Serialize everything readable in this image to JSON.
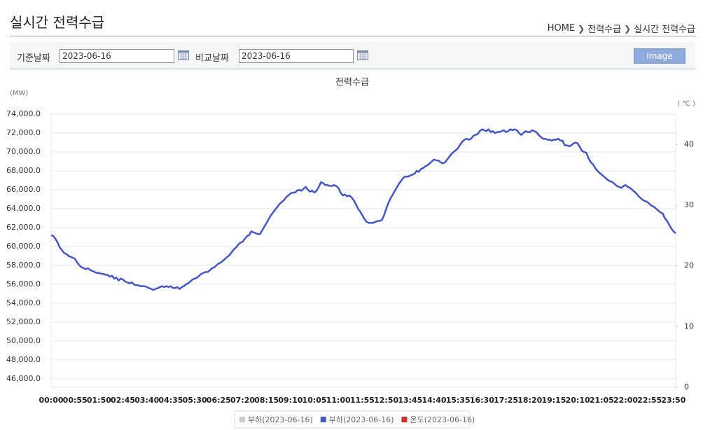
{
  "header": {
    "title": "실시간 전력수급",
    "breadcrumb": [
      "HOME",
      "전력수급",
      "실시간 전력수급"
    ]
  },
  "form": {
    "base_label": "기준날짜",
    "base_date": "2023-06-16",
    "compare_label": "비교날짜",
    "compare_date": "2023-06-16",
    "button": "Image"
  },
  "chart_data": {
    "type": "line",
    "title": "전력수급",
    "y_label": "(MW)",
    "y2_label": "( ℃ )",
    "categories": [
      "00:00",
      null,
      null,
      null,
      null,
      null,
      null,
      null,
      null,
      null,
      null,
      "00:55",
      null,
      null,
      null,
      null,
      null,
      null,
      null,
      null,
      null,
      null,
      "01:50",
      null,
      null,
      null,
      null,
      null,
      null,
      null,
      null,
      null,
      null,
      "02:45",
      null,
      null,
      null,
      null,
      null,
      null,
      null,
      null,
      null,
      null,
      "03:40",
      null,
      null,
      null,
      null,
      null,
      null,
      null,
      null,
      null,
      null,
      "04:35",
      null,
      null,
      null,
      null,
      null,
      null,
      null,
      null,
      null,
      null,
      "05:30",
      null,
      null,
      null,
      null,
      null,
      null,
      null,
      null,
      null,
      null,
      "06:25",
      null,
      null,
      null,
      null,
      null,
      null,
      null,
      null,
      null,
      null,
      "07:20",
      null,
      null,
      null,
      null,
      null,
      null,
      null,
      null,
      null,
      null,
      "08:15",
      null,
      null,
      null,
      null,
      null,
      null,
      null,
      null,
      null,
      null,
      "09:10",
      null,
      null,
      null,
      null,
      null,
      null,
      null,
      null,
      null,
      null,
      "10:05",
      null,
      null,
      null,
      null,
      null,
      null,
      null,
      null,
      null,
      null,
      "11:00",
      null,
      null,
      null,
      null,
      null,
      null,
      null,
      null,
      null,
      null,
      "11:55",
      null,
      null,
      null,
      null,
      null,
      null,
      null,
      null,
      null,
      null,
      "12:50",
      null,
      null,
      null,
      null,
      null,
      null,
      null,
      null,
      null,
      null,
      "13:45",
      null,
      null,
      null,
      null,
      null,
      null,
      null,
      null,
      null,
      null,
      "14:40",
      null,
      null,
      null,
      null,
      null,
      null,
      null,
      null,
      null,
      null,
      "15:35",
      null,
      null,
      null,
      null,
      null,
      null,
      null,
      null,
      null,
      null,
      "16:30",
      null,
      null,
      null,
      null,
      null,
      null,
      null,
      null,
      null,
      null,
      "17:25",
      null,
      null,
      null,
      null,
      null,
      null,
      null,
      null,
      null,
      null,
      "18:20",
      null,
      null,
      null,
      null,
      null,
      null,
      null,
      null,
      null,
      null,
      "19:15",
      null,
      null,
      null,
      null,
      null,
      null,
      null,
      null,
      null,
      null,
      "20:10",
      null,
      null,
      null,
      null,
      null,
      null,
      null,
      null,
      null,
      null,
      "21:05",
      null,
      null,
      null,
      null,
      null,
      null,
      null,
      null,
      null,
      null,
      "22:00",
      null,
      null,
      null,
      null,
      null,
      null,
      null,
      null,
      null,
      null,
      "22:55",
      null,
      null,
      null,
      null,
      null,
      null,
      null,
      null,
      null,
      null,
      "23:50",
      null
    ],
    "series": [
      {
        "name": "부하(2023-06-16)",
        "color": "#cccccc"
      },
      {
        "name": "부하(2023-06-16)",
        "color": "#4455cc",
        "values": [
          61200,
          61100,
          60800,
          60400,
          59900,
          59600,
          59300,
          59200,
          59000,
          58900,
          58800,
          58700,
          58300,
          58000,
          57800,
          57700,
          57600,
          57700,
          57500,
          57400,
          57300,
          57200,
          57200,
          57100,
          57100,
          57000,
          57000,
          56800,
          56900,
          56600,
          56700,
          56400,
          56600,
          56500,
          56300,
          56200,
          56100,
          56200,
          56000,
          55900,
          55900,
          55800,
          55800,
          55800,
          55700,
          55600,
          55500,
          55400,
          55500,
          55600,
          55700,
          55800,
          55700,
          55800,
          55700,
          55800,
          55600,
          55600,
          55700,
          55500,
          55700,
          55800,
          56000,
          56100,
          56300,
          56500,
          56600,
          56700,
          56900,
          57100,
          57200,
          57300,
          57300,
          57500,
          57700,
          57800,
          58000,
          58200,
          58300,
          58500,
          58700,
          58900,
          59100,
          59400,
          59700,
          59900,
          60200,
          60400,
          60500,
          60800,
          61100,
          61200,
          61600,
          61500,
          61400,
          61300,
          61300,
          61700,
          62100,
          62500,
          62900,
          63300,
          63600,
          63900,
          64200,
          64500,
          64700,
          64900,
          65200,
          65400,
          65600,
          65700,
          65700,
          65900,
          66000,
          65900,
          66100,
          66300,
          66000,
          65800,
          65900,
          65700,
          65900,
          66300,
          66800,
          66700,
          66500,
          66500,
          66400,
          66400,
          66500,
          66400,
          66200,
          65700,
          65400,
          65500,
          65300,
          65400,
          65200,
          64900,
          64500,
          64000,
          63700,
          63300,
          62900,
          62600,
          62500,
          62500,
          62500,
          62600,
          62700,
          62700,
          62800,
          63300,
          64000,
          64600,
          65100,
          65500,
          65900,
          66300,
          66700,
          67000,
          67300,
          67400,
          67400,
          67500,
          67600,
          67700,
          68000,
          67900,
          68200,
          68300,
          68500,
          68600,
          68800,
          69000,
          69200,
          69100,
          69100,
          68900,
          68800,
          68900,
          69200,
          69500,
          69800,
          70000,
          70200,
          70400,
          70800,
          71100,
          71300,
          71400,
          71300,
          71400,
          71700,
          71800,
          71900,
          72200,
          72400,
          72300,
          72200,
          72400,
          72100,
          72200,
          72000,
          72100,
          72100,
          72200,
          72300,
          72100,
          72200,
          72400,
          72300,
          72400,
          72300,
          72000,
          71800,
          72000,
          72200,
          72100,
          72100,
          72300,
          72200,
          72100,
          71800,
          71600,
          71400,
          71400,
          71300,
          71300,
          71200,
          71300,
          71300,
          71400,
          71200,
          71200,
          70700,
          70700,
          70600,
          70700,
          70900,
          71000,
          70900,
          70500,
          70100,
          70000,
          69900,
          69300,
          68900,
          68700,
          68300,
          68000,
          67800,
          67600,
          67400,
          67200,
          67000,
          66900,
          66800,
          66600,
          66400,
          66300,
          66200,
          66400,
          66500,
          66300,
          66200,
          66000,
          65800,
          65600,
          65300,
          65100,
          64900,
          64800,
          64700,
          64500,
          64300,
          64200,
          64000,
          63800,
          63600,
          63500,
          63000,
          62700,
          62300,
          61900,
          61600,
          61400
        ]
      },
      {
        "name": "온도(2023-06-16)",
        "color": "#d03030",
        "axis": "y2"
      }
    ],
    "ylim": [
      45100,
      74000
    ],
    "yticks": [
      {
        "value": 46000,
        "label": "46,000.0"
      },
      {
        "value": 48000,
        "label": "48,000.0"
      },
      {
        "value": 50000,
        "label": "50,000.0"
      },
      {
        "value": 52000,
        "label": "52,000.0"
      },
      {
        "value": 54000,
        "label": "54,000.0"
      },
      {
        "value": 56000,
        "label": "56,000.0"
      },
      {
        "value": 58000,
        "label": "58,000.0"
      },
      {
        "value": 60000,
        "label": "60,000.0"
      },
      {
        "value": 62000,
        "label": "62,000.0"
      },
      {
        "value": 64000,
        "label": "64,000.0"
      },
      {
        "value": 66000,
        "label": "66,000.0"
      },
      {
        "value": 68000,
        "label": "68,000.0"
      },
      {
        "value": 70000,
        "label": "70,000.0"
      },
      {
        "value": 72000,
        "label": "72,000.0"
      },
      {
        "value": 74000,
        "label": "74,000.0"
      }
    ],
    "y2lim": [
      0,
      45
    ],
    "y2ticks": [
      0,
      10,
      20,
      30,
      40
    ],
    "grid": true
  }
}
